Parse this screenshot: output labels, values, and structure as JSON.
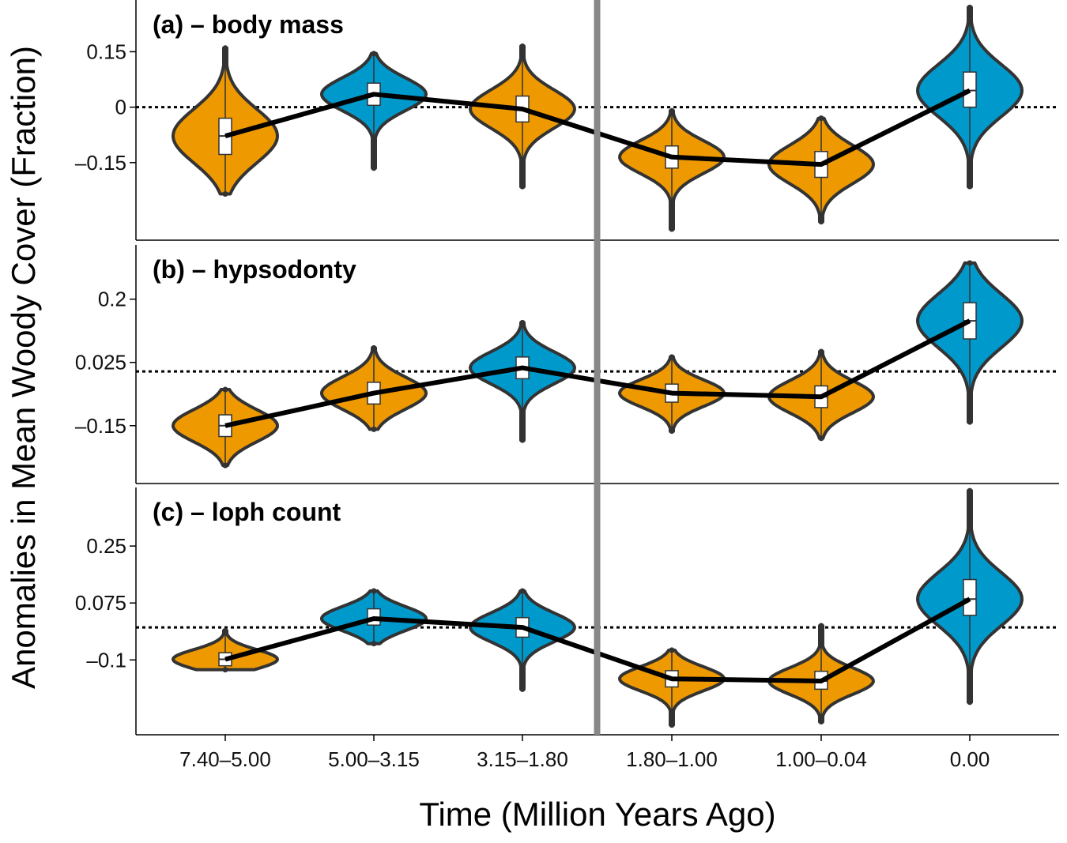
{
  "chart_data": {
    "type": "violin",
    "xlabel": "Time (Million Years Ago)",
    "ylabel": "Anomalies in Mean Woody Cover (Fraction)",
    "categories": [
      "7.40–5.00",
      "5.00–3.15",
      "3.15–1.80",
      "1.80–1.00",
      "1.00–0.04",
      "0.00"
    ],
    "divider_after_category_index": 2,
    "colors": {
      "positive": "#0099CC",
      "negative": "#EE9900",
      "outline": "#333333",
      "divider": "#888888",
      "line": "#000000"
    },
    "panels": [
      {
        "title": "(a) – body mass",
        "yticks": [
          0.15,
          0,
          -0.15
        ],
        "ytick_labels": [
          "0.15",
          "0",
          "–0.15"
        ],
        "ylim": [
          -0.36,
          0.29
        ],
        "medians": [
          -0.078,
          0.035,
          -0.005,
          -0.135,
          -0.155,
          0.045
        ],
        "iqr": [
          [
            -0.128,
            -0.03
          ],
          [
            0.005,
            0.065
          ],
          [
            -0.04,
            0.03
          ],
          [
            -0.165,
            -0.105
          ],
          [
            -0.19,
            -0.12
          ],
          [
            0.0,
            0.095
          ]
        ],
        "range": [
          [
            -0.235,
            0.16
          ],
          [
            -0.165,
            0.145
          ],
          [
            -0.215,
            0.165
          ],
          [
            -0.33,
            -0.01
          ],
          [
            -0.31,
            -0.03
          ],
          [
            -0.215,
            0.27
          ]
        ],
        "groups": [
          "negative-signal",
          "positive",
          "positive",
          "negative",
          "negative",
          "positive"
        ]
      },
      {
        "title": "(b) – hypsodonty",
        "yticks": [
          0.2,
          0.025,
          -0.15
        ],
        "ytick_labels": [
          "0.2",
          "0.025",
          "–0.15"
        ],
        "ylim": [
          -0.31,
          0.35
        ],
        "medians": [
          -0.15,
          -0.06,
          0.01,
          -0.06,
          -0.07,
          0.14
        ],
        "iqr": [
          [
            -0.18,
            -0.12
          ],
          [
            -0.09,
            -0.03
          ],
          [
            -0.02,
            0.04
          ],
          [
            -0.085,
            -0.035
          ],
          [
            -0.1,
            -0.04
          ],
          [
            0.09,
            0.19
          ]
        ],
        "range": [
          [
            -0.26,
            -0.05
          ],
          [
            -0.16,
            0.065
          ],
          [
            -0.19,
            0.135
          ],
          [
            -0.165,
            0.04
          ],
          [
            -0.185,
            0.055
          ],
          [
            -0.14,
            0.3
          ]
        ],
        "groups": [
          "negative",
          "positive",
          "positive",
          "negative",
          "negative",
          "positive"
        ]
      },
      {
        "title": "(c) – loph count",
        "yticks": [
          0.25,
          0.075,
          -0.1
        ],
        "ytick_labels": [
          "0.25",
          "0.075",
          "–0.1"
        ],
        "ylim": [
          -0.33,
          0.43
        ],
        "medians": [
          -0.098,
          0.027,
          0.0,
          -0.158,
          -0.165,
          0.087
        ],
        "iqr": [
          [
            -0.118,
            -0.078
          ],
          [
            0.007,
            0.057
          ],
          [
            -0.03,
            0.03
          ],
          [
            -0.183,
            -0.133
          ],
          [
            -0.19,
            -0.135
          ],
          [
            0.037,
            0.147
          ]
        ],
        "range": [
          [
            -0.13,
            -0.01
          ],
          [
            -0.05,
            0.112
          ],
          [
            -0.19,
            0.112
          ],
          [
            -0.3,
            -0.07
          ],
          [
            -0.29,
            0.005
          ],
          [
            -0.23,
            0.42
          ]
        ],
        "groups": [
          "negative",
          "positive",
          "positive",
          "negative",
          "negative",
          "positive"
        ]
      }
    ]
  }
}
